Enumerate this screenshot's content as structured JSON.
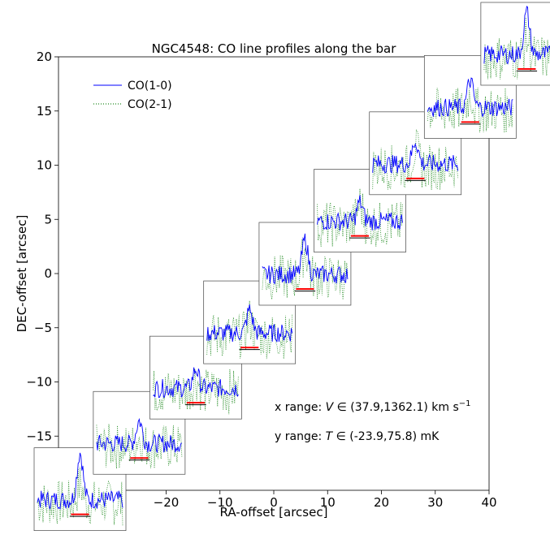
{
  "chart_data": {
    "type": "line",
    "title": "NGC4548: CO line profiles along the bar",
    "xlabel": "RA-offset [arcsec]",
    "ylabel": "DEC-offset [arcsec]",
    "xlim": [
      -40,
      40
    ],
    "ylim": [
      -20,
      20
    ],
    "xticks": [
      -30,
      -20,
      -10,
      0,
      10,
      20,
      30,
      40
    ],
    "xtick_labels": [
      "−30",
      "−20",
      "−10",
      "0",
      "10",
      "20",
      "30",
      "40"
    ],
    "yticks": [
      -15,
      -10,
      -5,
      0,
      5,
      10,
      15,
      20
    ],
    "ytick_labels": [
      "−15",
      "−10",
      "−5",
      "0",
      "5",
      "10",
      "15",
      "20"
    ],
    "grid": false,
    "legend": {
      "placement": "upper-left",
      "entries": [
        {
          "label": "CO(1-0)",
          "color": "#0000ff",
          "style": "solid"
        },
        {
          "label": "CO(2-1)",
          "color": "#228b22",
          "style": "dotted"
        }
      ]
    },
    "annotations": [
      {
        "prefix": "x range: ",
        "var": "V",
        "body": " ∈ (37.9,1362.1) km s",
        "sup": "−1"
      },
      {
        "prefix": "y range: ",
        "var": "T",
        "body": " ∈ (-23.9,75.8) mK",
        "sup": ""
      }
    ],
    "inset_profile": {
      "x_range_kms": [
        37.9,
        1362.1
      ],
      "y_range_mK": [
        -23.9,
        75.8
      ]
    },
    "positions": [
      {
        "ra": -36.0,
        "dec": -19.9,
        "co10_peak_mK": 62,
        "co21_peak_mK": 40
      },
      {
        "ra": -25.0,
        "dec": -14.7,
        "co10_peak_mK": 30,
        "co21_peak_mK": 20
      },
      {
        "ra": -14.5,
        "dec": -9.6,
        "co10_peak_mK": 25,
        "co21_peak_mK": 28
      },
      {
        "ra": -4.5,
        "dec": -4.5,
        "co10_peak_mK": 30,
        "co21_peak_mK": 35
      },
      {
        "ra": 5.8,
        "dec": 0.9,
        "co10_peak_mK": 45,
        "co21_peak_mK": 60
      },
      {
        "ra": 16.0,
        "dec": 5.8,
        "co10_peak_mK": 25,
        "co21_peak_mK": 45
      },
      {
        "ra": 26.3,
        "dec": 11.1,
        "co10_peak_mK": 30,
        "co21_peak_mK": 40
      },
      {
        "ra": 36.5,
        "dec": 16.3,
        "co10_peak_mK": 35,
        "co21_peak_mK": 35
      },
      {
        "ra": 47.0,
        "dec": 21.2,
        "co10_peak_mK": 55,
        "co21_peak_mK": 40
      }
    ]
  }
}
